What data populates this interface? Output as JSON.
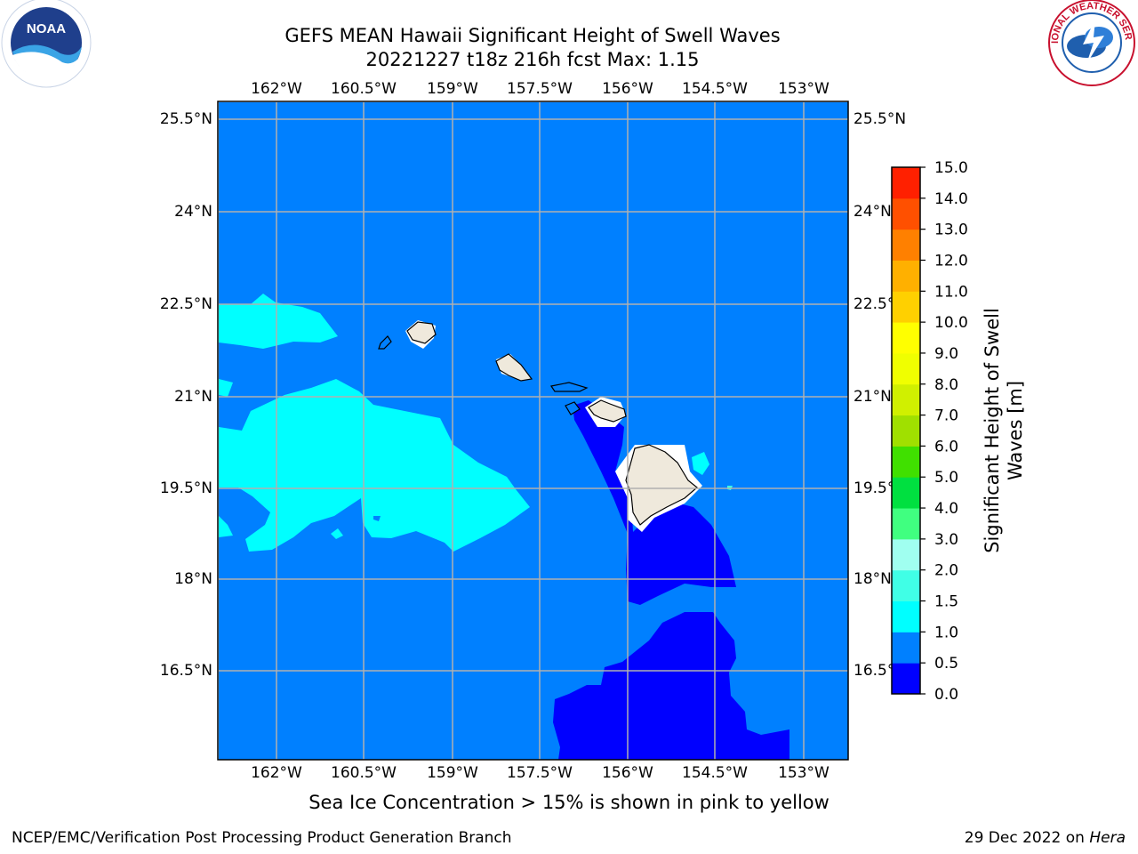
{
  "header": {
    "title_line1": "GEFS MEAN Hawaii Significant Height of Swell Waves",
    "title_line2": "20221227 t18z 216h fcst   Max: 1.15"
  },
  "logos": {
    "noaa_text": "NOAA",
    "nws_text": "NATIONAL WEATHER SERVICE"
  },
  "map": {
    "lon_ticks": [
      "162°W",
      "160.5°W",
      "159°W",
      "157.5°W",
      "156°W",
      "154.5°W",
      "153°W"
    ],
    "lat_ticks": [
      "25.5°N",
      "24°N",
      "22.5°N",
      "21°N",
      "19.5°N",
      "18°N",
      "16.5°N"
    ],
    "ocean_color": "#0080ff"
  },
  "colorbar": {
    "label": "Significant Height of Swell Waves [m]",
    "label_line1": "Significant Height of Swell",
    "label_line2": "Waves [m]",
    "ticks": [
      "0.0",
      "0.5",
      "1.0",
      "1.5",
      "2.0",
      "3.0",
      "4.0",
      "5.0",
      "6.0",
      "7.0",
      "8.0",
      "9.0",
      "10.0",
      "11.0",
      "12.0",
      "13.0",
      "14.0",
      "15.0"
    ],
    "colors": [
      "#0000ff",
      "#0080ff",
      "#00ffff",
      "#40ffe6",
      "#a0fff0",
      "#40ff80",
      "#00e040",
      "#40e000",
      "#a0e000",
      "#d0f000",
      "#f0ff00",
      "#ffff00",
      "#ffd000",
      "#ffb000",
      "#ff8000",
      "#ff5000",
      "#ff2000",
      "#ff0000"
    ]
  },
  "footer": {
    "note": "Sea Ice Concentration > 15% is shown in pink to yellow",
    "left": "NCEP/EMC/Verification Post Processing Product Generation Branch",
    "right_date": "29 Dec 2022 on",
    "right_machine": "Hera"
  }
}
